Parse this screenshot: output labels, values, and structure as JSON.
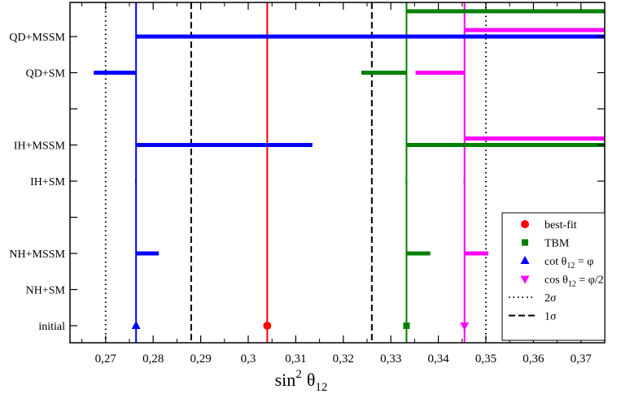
{
  "chart_data": {
    "type": "scatter",
    "xlabel_main": "sin",
    "xlabel_sup": "2",
    "xlabel_theta": "θ",
    "xlabel_sub": "12",
    "xlim": [
      0.2625,
      0.375
    ],
    "xticks": [
      0.27,
      0.28,
      0.29,
      0.3,
      0.31,
      0.32,
      0.33,
      0.34,
      0.35,
      0.36,
      0.37
    ],
    "xtick_labels": [
      "0,27",
      "0,28",
      "0,29",
      "0,3",
      "0,31",
      "0,32",
      "0,33",
      "0,34",
      "0,35",
      "0,36",
      "0,37"
    ],
    "categories": [
      "initial",
      "NH+SM",
      "NH+MSSM",
      "",
      "IH+SM",
      "IH+MSSM",
      "",
      "QD+SM",
      "QD+MSSM",
      ""
    ],
    "vertical_lines": [
      {
        "name": "best-fit",
        "x": 0.304,
        "color": "#ff0000",
        "style": "solid"
      },
      {
        "name": "TBM",
        "x": 0.3333,
        "color": "#008000",
        "style": "solid"
      },
      {
        "name": "cot",
        "x": 0.2764,
        "color": "#0000ff",
        "style": "solid"
      },
      {
        "name": "cos",
        "x": 0.3455,
        "color": "#ff00ff",
        "style": "solid"
      },
      {
        "name": "2σ",
        "x": 0.27,
        "color": "#000000",
        "style": "dotted"
      },
      {
        "name": "2σ",
        "x": 0.35,
        "color": "#000000",
        "style": "dotted"
      },
      {
        "name": "1σ",
        "x": 0.288,
        "color": "#000000",
        "style": "dashed"
      },
      {
        "name": "1σ",
        "x": 0.326,
        "color": "#000000",
        "style": "dashed"
      }
    ],
    "series": [
      {
        "name": "best-fit",
        "color": "#ff0000",
        "marker": "circle",
        "points": [
          {
            "y": 0,
            "x": 0.304
          }
        ],
        "ranges": []
      },
      {
        "name": "TBM",
        "color": "#008000",
        "marker": "square",
        "points": [
          {
            "y": 0,
            "x": 0.3333
          }
        ],
        "ranges": [
          {
            "y": 2,
            "from": 0.3333,
            "to": 0.3383
          },
          {
            "y": 4,
            "from": 0.3331,
            "to": 0.3334
          },
          {
            "y": 5,
            "from": 0.3333,
            "to": 0.375
          },
          {
            "y": 7,
            "from": 0.3238,
            "to": 0.3333
          },
          {
            "y": 8.7,
            "from": 0.3333,
            "to": 0.375
          }
        ]
      },
      {
        "name": "cot θ12 = φ",
        "color": "#0000ff",
        "marker": "triangle-up",
        "points": [
          {
            "y": 0,
            "x": 0.2764
          }
        ],
        "ranges": [
          {
            "y": 2,
            "from": 0.2764,
            "to": 0.2812
          },
          {
            "y": 4,
            "from": 0.2762,
            "to": 0.2765
          },
          {
            "y": 5,
            "from": 0.2764,
            "to": 0.3135
          },
          {
            "y": 7,
            "from": 0.2675,
            "to": 0.2764
          },
          {
            "y": 8,
            "from": 0.2764,
            "to": 0.375
          }
        ]
      },
      {
        "name": "cos θ12 = φ/2",
        "color": "#ff00ff",
        "marker": "triangle-down",
        "points": [
          {
            "y": 0,
            "x": 0.3455
          }
        ],
        "ranges": [
          {
            "y": 2,
            "from": 0.3455,
            "to": 0.3505
          },
          {
            "y": 4,
            "from": 0.3453,
            "to": 0.3456
          },
          {
            "y": 5.18,
            "from": 0.3455,
            "to": 0.375
          },
          {
            "y": 7,
            "from": 0.3352,
            "to": 0.3455
          },
          {
            "y": 8.18,
            "from": 0.3455,
            "to": 0.375
          }
        ]
      }
    ],
    "legend": {
      "placement": "bottom-right",
      "entries": [
        {
          "label": "best-fit",
          "kind": "circle",
          "color": "#ff0000"
        },
        {
          "label": "TBM",
          "kind": "square",
          "color": "#008000"
        },
        {
          "label_main": "cot θ",
          "label_sub": "12",
          "label_tail": " = φ",
          "kind": "triangle-up",
          "color": "#0000ff"
        },
        {
          "label_main": "cos θ",
          "label_sub": "12",
          "label_tail": " = φ/2",
          "kind": "triangle-down",
          "color": "#ff00ff"
        },
        {
          "label": "2σ",
          "kind": "dotted",
          "color": "#000000"
        },
        {
          "label": "1σ",
          "kind": "dashed",
          "color": "#000000"
        }
      ]
    }
  }
}
